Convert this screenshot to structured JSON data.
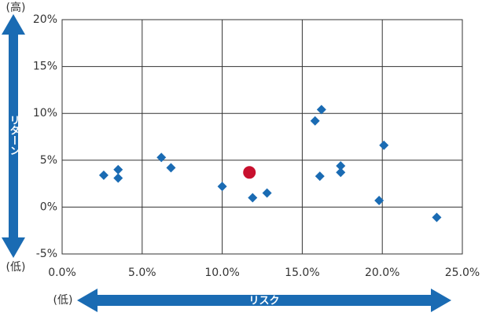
{
  "chart_data": {
    "type": "scatter",
    "y_axis_label": "リターン",
    "y_high_label": "(高)",
    "y_low_label": "(低)",
    "x_axis_label": "リスク",
    "x_low_label": "(低)",
    "xlim": [
      0,
      25
    ],
    "ylim": [
      -5,
      20
    ],
    "xticks": [
      {
        "value": 0,
        "label": "0.0%"
      },
      {
        "value": 5,
        "label": "5.0%"
      },
      {
        "value": 10,
        "label": "10.0%"
      },
      {
        "value": 15,
        "label": "15.0%"
      },
      {
        "value": 20,
        "label": "20.0%"
      },
      {
        "value": 25,
        "label": "25.0%"
      }
    ],
    "yticks": [
      {
        "value": 20,
        "label": "20%"
      },
      {
        "value": 15,
        "label": "15%"
      },
      {
        "value": 10,
        "label": "10%"
      },
      {
        "value": 5,
        "label": "5%"
      },
      {
        "value": 0,
        "label": "0%"
      },
      {
        "value": -5,
        "label": "-5%"
      }
    ],
    "grid": true,
    "series": [
      {
        "color": "#1a6bb3",
        "marker": "diamond",
        "x": [
          2.6,
          3.5,
          3.5,
          6.2,
          6.8,
          10.0,
          11.9,
          12.8,
          15.8,
          16.2,
          16.1,
          17.4,
          17.4,
          20.1,
          19.8,
          23.4
        ],
        "values": [
          3.4,
          4.0,
          3.1,
          5.3,
          4.2,
          2.2,
          1.0,
          1.5,
          9.2,
          10.4,
          3.3,
          4.4,
          3.7,
          6.6,
          0.7,
          -1.1
        ]
      },
      {
        "color": "#c8102e",
        "marker": "circle",
        "x": [
          11.7
        ],
        "values": [
          3.7
        ]
      }
    ]
  }
}
